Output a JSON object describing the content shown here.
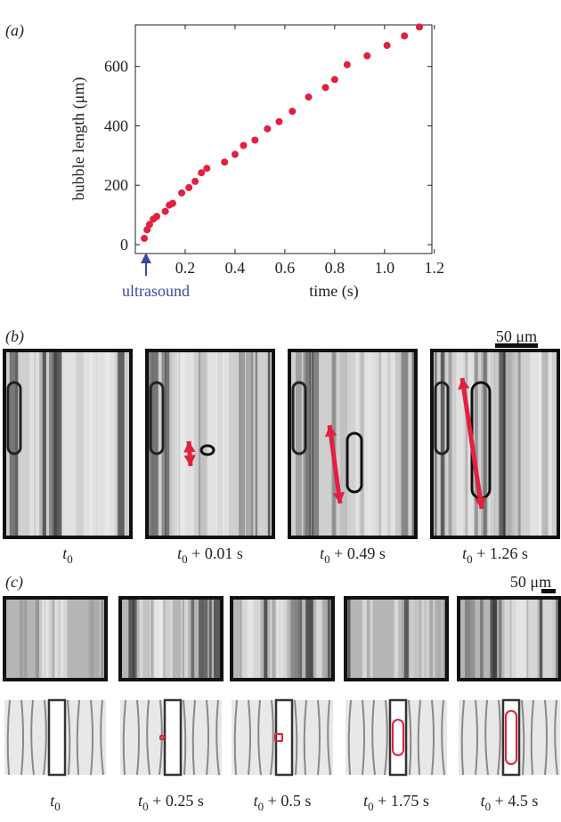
{
  "chart_data": {
    "type": "scatter",
    "panel_label": "(a)",
    "x_label": "time (s)",
    "y_label": "bubble length (μm)",
    "annotation": "ultrasound",
    "color": "#e2203f",
    "x": [
      0.036,
      0.047,
      0.057,
      0.072,
      0.086,
      0.12,
      0.136,
      0.15,
      0.186,
      0.215,
      0.24,
      0.265,
      0.287,
      0.358,
      0.4,
      0.434,
      0.48,
      0.53,
      0.577,
      0.63,
      0.695,
      0.763,
      0.8,
      0.85,
      0.93,
      1.01,
      1.08,
      1.14
    ],
    "y": [
      21,
      50,
      68,
      86,
      95,
      112,
      133,
      139,
      174,
      192,
      213,
      242,
      257,
      278,
      304,
      334,
      352,
      390,
      414,
      449,
      497,
      529,
      556,
      606,
      636,
      671,
      703,
      733
    ],
    "xlim": [
      0,
      1.19
    ],
    "ylim": [
      -30,
      740
    ],
    "xticks": [
      0.2,
      0.4,
      0.6,
      0.8,
      {
        "value": 1.0,
        "label": "1.0"
      },
      1.2
    ],
    "yticks": [
      0,
      200,
      400,
      600
    ]
  },
  "panel_b": {
    "label": "(b)",
    "scale_bar": "50 μm",
    "captions": [
      {
        "var": "t",
        "sub": "0"
      },
      {
        "var": "t",
        "sub": "0",
        "rest": " + 0.01 s"
      },
      {
        "var": "t",
        "sub": "0",
        "rest": " + 0.49 s"
      },
      {
        "var": "t",
        "sub": "0",
        "rest": " + 1.26 s"
      }
    ]
  },
  "panel_c": {
    "label": "(c)",
    "scale_bar": "50 μm",
    "captions": [
      {
        "var": "t",
        "sub": "0"
      },
      {
        "var": "t",
        "sub": "0",
        "rest": " + 0.25 s"
      },
      {
        "var": "t",
        "sub": "0",
        "rest": " + 0.5 s"
      },
      {
        "var": "t",
        "sub": "0",
        "rest": " + 1.75 s"
      },
      {
        "var": "t",
        "sub": "0",
        "rest": " + 4.5 s"
      }
    ]
  }
}
